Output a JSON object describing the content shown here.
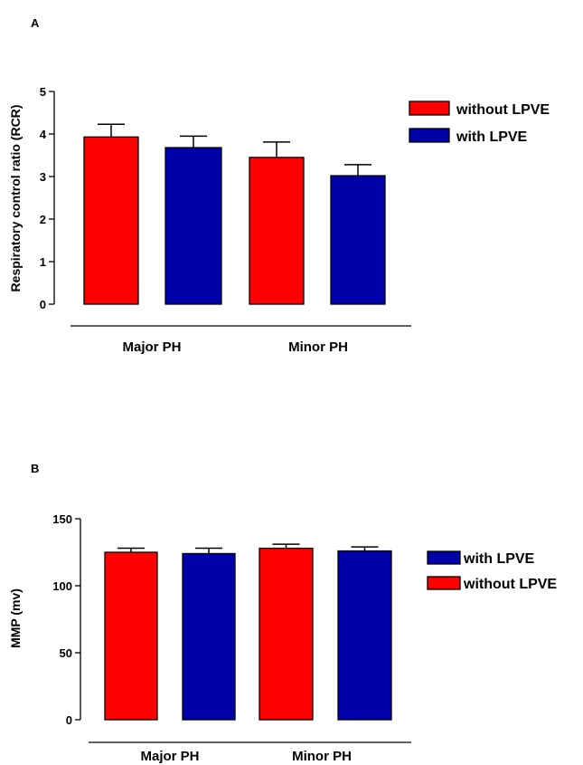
{
  "chart_data": [
    {
      "panel": "A",
      "type": "bar",
      "ylabel": "Respiratory control ratio (RCR)",
      "ylim": [
        0,
        5
      ],
      "yticks": [
        0,
        1,
        2,
        3,
        4,
        5
      ],
      "categories": [
        "Major PH",
        "Minor PH"
      ],
      "series": [
        {
          "name": "without LPVE",
          "color": "#ff0000",
          "values": [
            3.93,
            3.45
          ],
          "errors": [
            0.3,
            0.36
          ]
        },
        {
          "name": "with LPVE",
          "color": "#0000aa",
          "values": [
            3.68,
            3.02
          ],
          "errors": [
            0.27,
            0.26
          ]
        }
      ],
      "legend": [
        {
          "label": "without LPVE",
          "color": "#ff0000"
        },
        {
          "label": "with LPVE",
          "color": "#0000aa"
        }
      ],
      "legend_position": "right"
    },
    {
      "panel": "B",
      "type": "bar",
      "ylabel": "MMP (mv)",
      "ylim": [
        0,
        150
      ],
      "yticks": [
        0,
        50,
        100,
        150
      ],
      "categories": [
        "Major PH",
        "Minor PH"
      ],
      "series": [
        {
          "name": "without LPVE",
          "color": "#ff0000",
          "values": [
            125,
            128
          ],
          "errors": [
            3,
            3
          ]
        },
        {
          "name": "with LPVE",
          "color": "#0000aa",
          "values": [
            124,
            126
          ],
          "errors": [
            4,
            3
          ]
        }
      ],
      "legend": [
        {
          "label": "with LPVE",
          "color": "#0000aa"
        },
        {
          "label": "without LPVE",
          "color": "#ff0000"
        }
      ],
      "legend_position": "right"
    }
  ]
}
